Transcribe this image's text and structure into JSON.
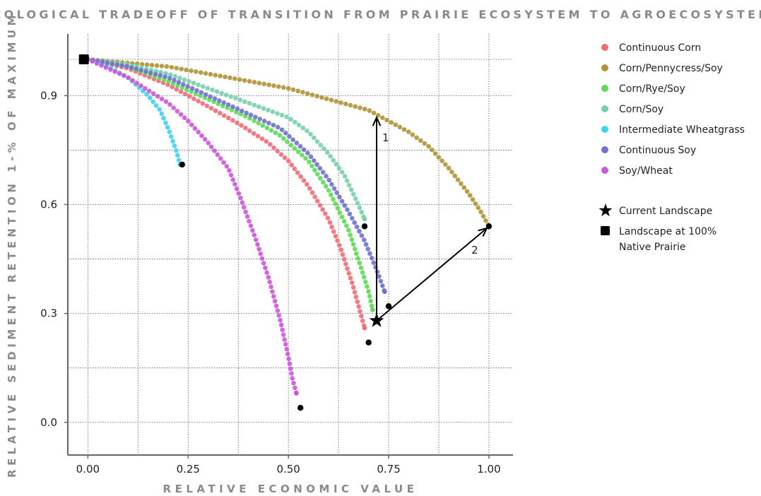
{
  "chart_data": {
    "type": "scatter",
    "title": "ECOLOGICAL TRADEOFF OF TRANSITION FROM PRAIRIE ECOSYSTEM TO AGROECOSYSTEM",
    "xlabel": "RELATIVE ECONOMIC VALUE",
    "ylabel": "RELATIVE SEDIMENT RETENTION 1-% OF MAXIMUM",
    "xlim": [
      -0.05,
      1.06
    ],
    "ylim": [
      -0.09,
      1.07
    ],
    "x_ticks": [
      0,
      0.25,
      0.5,
      0.75,
      1
    ],
    "x_tick_labels": [
      "0.00",
      "0.25",
      "0.50",
      "0.75",
      "1.00"
    ],
    "y_ticks": [
      0,
      0.3,
      0.6,
      0.9
    ],
    "y_tick_labels": [
      "0.0",
      "0.3",
      "0.6",
      "0.9"
    ],
    "grid_x": [
      0.125,
      0.375,
      0.625,
      0.875
    ],
    "grid_y": [
      0.15,
      0.45,
      0.75,
      1.0
    ],
    "grid": true,
    "legend_position": "right",
    "series": [
      {
        "name": "Continuous Corn",
        "color": "#ee6d78",
        "points": [
          [
            0,
            1
          ],
          [
            0.1,
            0.975
          ],
          [
            0.2,
            0.93
          ],
          [
            0.3,
            0.87
          ],
          [
            0.38,
            0.82
          ],
          [
            0.45,
            0.77
          ],
          [
            0.5,
            0.72
          ],
          [
            0.55,
            0.65
          ],
          [
            0.6,
            0.56
          ],
          [
            0.63,
            0.48
          ],
          [
            0.66,
            0.38
          ],
          [
            0.68,
            0.3
          ],
          [
            0.69,
            0.26
          ]
        ],
        "end": [
          0.7,
          0.22
        ]
      },
      {
        "name": "Corn/Pennycress/Soy",
        "color": "#b09335",
        "points": [
          [
            0,
            1
          ],
          [
            0.1,
            0.99
          ],
          [
            0.2,
            0.98
          ],
          [
            0.3,
            0.96
          ],
          [
            0.4,
            0.94
          ],
          [
            0.5,
            0.92
          ],
          [
            0.6,
            0.89
          ],
          [
            0.7,
            0.86
          ],
          [
            0.75,
            0.83
          ],
          [
            0.8,
            0.8
          ],
          [
            0.85,
            0.76
          ],
          [
            0.9,
            0.7
          ],
          [
            0.95,
            0.63
          ],
          [
            0.98,
            0.58
          ],
          [
            1.0,
            0.54
          ]
        ],
        "end": [
          1.0,
          0.54
        ]
      },
      {
        "name": "Corn/Rye/Soy",
        "color": "#5ed958",
        "points": [
          [
            0,
            1
          ],
          [
            0.1,
            0.98
          ],
          [
            0.2,
            0.94
          ],
          [
            0.3,
            0.89
          ],
          [
            0.4,
            0.84
          ],
          [
            0.48,
            0.79
          ],
          [
            0.55,
            0.72
          ],
          [
            0.6,
            0.64
          ],
          [
            0.65,
            0.53
          ],
          [
            0.68,
            0.43
          ],
          [
            0.7,
            0.36
          ],
          [
            0.71,
            0.31
          ]
        ],
        "end": null
      },
      {
        "name": "Corn/Soy",
        "color": "#76d0ad",
        "points": [
          [
            0,
            1
          ],
          [
            0.1,
            0.985
          ],
          [
            0.2,
            0.96
          ],
          [
            0.3,
            0.92
          ],
          [
            0.4,
            0.88
          ],
          [
            0.5,
            0.84
          ],
          [
            0.55,
            0.8
          ],
          [
            0.6,
            0.74
          ],
          [
            0.64,
            0.68
          ],
          [
            0.67,
            0.61
          ],
          [
            0.69,
            0.56
          ]
        ],
        "end": [
          0.69,
          0.54
        ]
      },
      {
        "name": "Intermediate Wheatgrass",
        "color": "#40d2f0",
        "points": [
          [
            0,
            1
          ],
          [
            0.05,
            0.98
          ],
          [
            0.1,
            0.95
          ],
          [
            0.15,
            0.9
          ],
          [
            0.18,
            0.86
          ],
          [
            0.2,
            0.81
          ],
          [
            0.22,
            0.75
          ],
          [
            0.23,
            0.71
          ]
        ],
        "end": [
          0.235,
          0.71
        ]
      },
      {
        "name": "Continuous Soy",
        "color": "#6e72cb",
        "points": [
          [
            0,
            1
          ],
          [
            0.1,
            0.98
          ],
          [
            0.2,
            0.95
          ],
          [
            0.3,
            0.9
          ],
          [
            0.4,
            0.85
          ],
          [
            0.48,
            0.81
          ],
          [
            0.55,
            0.74
          ],
          [
            0.6,
            0.67
          ],
          [
            0.65,
            0.58
          ],
          [
            0.69,
            0.5
          ],
          [
            0.72,
            0.42
          ],
          [
            0.74,
            0.36
          ]
        ],
        "end": [
          0.75,
          0.32
        ]
      },
      {
        "name": "Soy/Wheat",
        "color": "#cc57d8",
        "points": [
          [
            0,
            1
          ],
          [
            0.1,
            0.95
          ],
          [
            0.2,
            0.88
          ],
          [
            0.25,
            0.83
          ],
          [
            0.3,
            0.77
          ],
          [
            0.35,
            0.7
          ],
          [
            0.38,
            0.62
          ],
          [
            0.42,
            0.5
          ],
          [
            0.45,
            0.4
          ],
          [
            0.48,
            0.28
          ],
          [
            0.5,
            0.18
          ],
          [
            0.51,
            0.12
          ],
          [
            0.52,
            0.08
          ]
        ],
        "end": [
          0.53,
          0.04
        ]
      }
    ],
    "markers": [
      {
        "name": "Current Landscape",
        "shape": "star",
        "x": 0.72,
        "y": 0.28
      },
      {
        "name": "Landscape at 100% Native Prairie",
        "shape": "square",
        "x": -0.01,
        "y": 1.0
      }
    ],
    "arrows": [
      {
        "label": "1",
        "from": [
          0.72,
          0.28
        ],
        "to": [
          0.72,
          0.84
        ]
      },
      {
        "label": "2",
        "from": [
          0.72,
          0.28
        ],
        "to": [
          0.995,
          0.535
        ]
      }
    ],
    "legend": {
      "marker_entries": [
        {
          "shape": "star",
          "lines": [
            "Current Landscape"
          ]
        },
        {
          "shape": "square",
          "lines": [
            "Landscape at 100%",
            "Native Prairie"
          ]
        }
      ]
    }
  }
}
